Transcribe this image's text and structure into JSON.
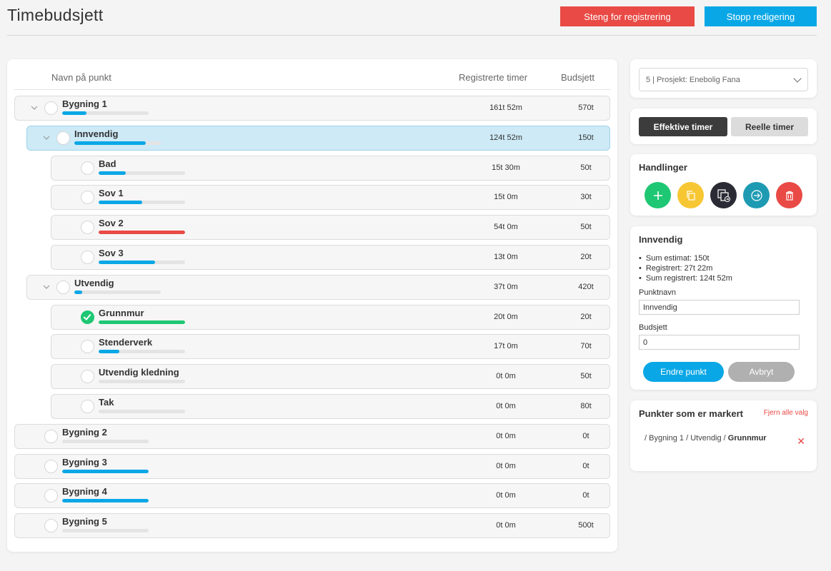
{
  "header": {
    "title": "Timebudsjett",
    "lock_label": "Steng for registrering",
    "stop_label": "Stopp redigering"
  },
  "table": {
    "col_name": "Navn på punkt",
    "col_registered": "Registrerte timer",
    "col_budget": "Budsjett",
    "rows": [
      {
        "name": "Bygning 1",
        "registered": "161t 52m",
        "budget": "570t",
        "level": 0,
        "expanded": true,
        "progress": 0.28,
        "color": "#0aa7e6"
      },
      {
        "name": "Innvendig",
        "registered": "124t 52m",
        "budget": "150t",
        "level": 1,
        "expanded": true,
        "selected": true,
        "progress": 0.83,
        "color": "#0aa7e6"
      },
      {
        "name": "Bad",
        "registered": "15t 30m",
        "budget": "50t",
        "level": 2,
        "progress": 0.31,
        "color": "#0aa7e6"
      },
      {
        "name": "Sov 1",
        "registered": "15t 0m",
        "budget": "30t",
        "level": 2,
        "progress": 0.5,
        "color": "#0aa7e6"
      },
      {
        "name": "Sov 2",
        "registered": "54t 0m",
        "budget": "50t",
        "level": 2,
        "progress": 1.0,
        "color": "#e94a45"
      },
      {
        "name": "Sov 3",
        "registered": "13t 0m",
        "budget": "20t",
        "level": 2,
        "progress": 0.65,
        "color": "#0aa7e6"
      },
      {
        "name": "Utvendig",
        "registered": "37t 0m",
        "budget": "420t",
        "level": 1,
        "expanded": true,
        "progress": 0.09,
        "color": "#0aa7e6"
      },
      {
        "name": "Grunnmur",
        "registered": "20t 0m",
        "budget": "20t",
        "level": 2,
        "checked": true,
        "progress": 1.0,
        "color": "#1ec773"
      },
      {
        "name": "Stenderverk",
        "registered": "17t 0m",
        "budget": "70t",
        "level": 2,
        "progress": 0.24,
        "color": "#0aa7e6"
      },
      {
        "name": "Utvendig kledning",
        "registered": "0t 0m",
        "budget": "50t",
        "level": 2,
        "progress": 0,
        "color": "#0aa7e6"
      },
      {
        "name": "Tak",
        "registered": "0t 0m",
        "budget": "80t",
        "level": 2,
        "progress": 0,
        "color": "#0aa7e6"
      },
      {
        "name": "Bygning 2",
        "registered": "0t 0m",
        "budget": "0t",
        "level": 0,
        "progress": 0,
        "color": "#0aa7e6"
      },
      {
        "name": "Bygning 3",
        "registered": "0t 0m",
        "budget": "0t",
        "level": 0,
        "progress": 1.0,
        "color": "#0aa7e6"
      },
      {
        "name": "Bygning 4",
        "registered": "0t 0m",
        "budget": "0t",
        "level": 0,
        "progress": 1.0,
        "color": "#0aa7e6"
      },
      {
        "name": "Bygning 5",
        "registered": "0t 0m",
        "budget": "500t",
        "level": 0,
        "progress": 0,
        "color": "#0aa7e6"
      }
    ]
  },
  "project": {
    "selected": "5 | Prosjekt: Enebolig Fana"
  },
  "toggle": {
    "effective": "Effektive timer",
    "real": "Reelle timer"
  },
  "actions": {
    "title": "Handlinger",
    "buttons": [
      {
        "icon": "plus-icon",
        "color": "#1ec773"
      },
      {
        "icon": "copy-icon",
        "color": "#f7c733"
      },
      {
        "icon": "move-icon",
        "color": "#2b2b35"
      },
      {
        "icon": "arrow-right-circle-icon",
        "color": "#1e9bb3"
      },
      {
        "icon": "trash-icon",
        "color": "#e94a45"
      }
    ]
  },
  "details": {
    "title": "Innvendig",
    "sum_estimate": "Sum estimat: 150t",
    "registered": "Registrert: 27t 22m",
    "sum_registered": "Sum registrert: 124t 52m",
    "name_label": "Punktnavn",
    "name_value": "Innvendig",
    "budget_label": "Budsjett",
    "budget_value": "0",
    "edit_label": "Endre punkt",
    "cancel_label": "Avbryt"
  },
  "marked": {
    "title": "Punkter som er markert",
    "clear_label": "Fjern alle valg",
    "path_prefix": "/ Bygning 1 / Utvendig / ",
    "path_leaf": "Grunnmur"
  }
}
